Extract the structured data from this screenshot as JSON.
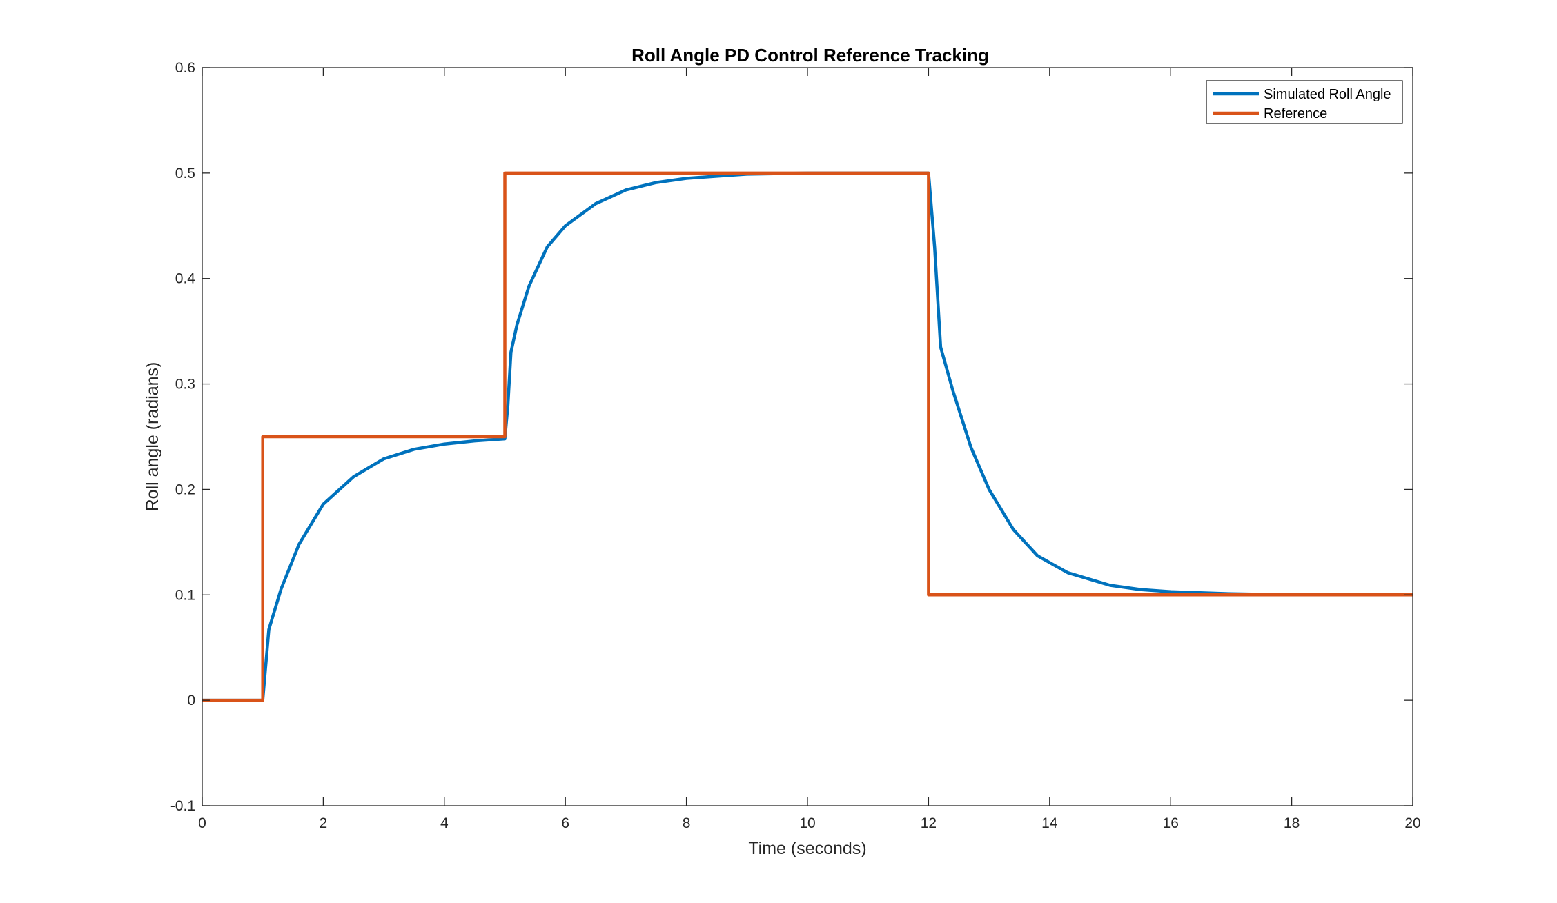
{
  "chart_data": {
    "type": "line",
    "title": "Roll Angle PD Control Reference Tracking",
    "xlabel": "Time (seconds)",
    "ylabel": "Roll angle (radians)",
    "xlim": [
      0,
      20
    ],
    "ylim": [
      -0.1,
      0.6
    ],
    "x_ticks": [
      0,
      2,
      4,
      6,
      8,
      10,
      12,
      14,
      16,
      18,
      20
    ],
    "x_tick_labels": [
      "0",
      "2",
      "4",
      "6",
      "8",
      "10",
      "12",
      "14",
      "16",
      "18",
      "20"
    ],
    "y_ticks": [
      -0.1,
      0,
      0.1,
      0.2,
      0.3,
      0.4,
      0.5,
      0.6
    ],
    "y_tick_labels": [
      "-0.1",
      "0",
      "0.1",
      "0.2",
      "0.3",
      "0.4",
      "0.5",
      "0.6"
    ],
    "grid": false,
    "legend_position": "top-right",
    "series": [
      {
        "name": "Simulated Roll Angle",
        "color": "#0072BD",
        "x": [
          0,
          1.0,
          1.1,
          1.3,
          1.6,
          2.0,
          2.5,
          3.0,
          3.5,
          4.0,
          4.5,
          5.0,
          5.05,
          5.1,
          5.2,
          5.4,
          5.7,
          6.0,
          6.5,
          7.0,
          7.5,
          8.0,
          8.5,
          9.0,
          10.0,
          10.6,
          11.5,
          12.0,
          12.1,
          12.2,
          12.4,
          12.7,
          13.0,
          13.4,
          13.8,
          14.3,
          15.0,
          15.5,
          16.0,
          17.0,
          18.0,
          19.0,
          20.0
        ],
        "y": [
          0,
          0,
          0.067,
          0.105,
          0.148,
          0.186,
          0.212,
          0.229,
          0.238,
          0.243,
          0.246,
          0.248,
          0.28,
          0.33,
          0.356,
          0.393,
          0.43,
          0.45,
          0.471,
          0.484,
          0.491,
          0.495,
          0.497,
          0.499,
          0.5,
          0.5,
          0.5,
          0.5,
          0.43,
          0.335,
          0.294,
          0.24,
          0.2,
          0.162,
          0.137,
          0.121,
          0.109,
          0.105,
          0.103,
          0.101,
          0.1,
          0.1,
          0.1
        ]
      },
      {
        "name": "Reference",
        "color": "#D95319",
        "x": [
          0,
          1,
          1,
          5,
          5,
          12,
          12,
          20
        ],
        "y": [
          0,
          0,
          0.25,
          0.25,
          0.5,
          0.5,
          0.1,
          0.1
        ]
      }
    ]
  }
}
